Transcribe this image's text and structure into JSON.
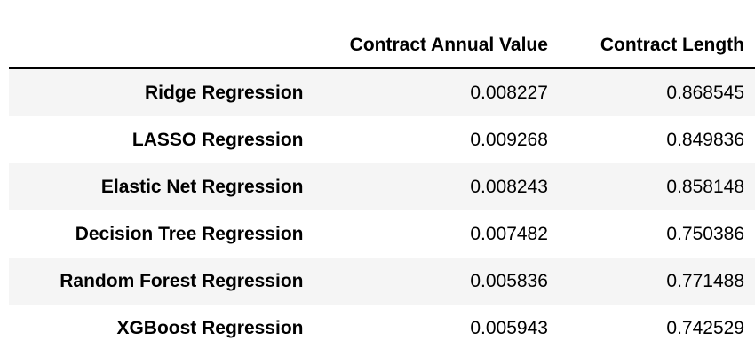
{
  "table": {
    "index_header": "",
    "columns": [
      "Contract Annual Value",
      "Contract Length"
    ],
    "rows": [
      {
        "label": "Ridge Regression",
        "values": [
          "0.008227",
          "0.868545"
        ]
      },
      {
        "label": "LASSO Regression",
        "values": [
          "0.009268",
          "0.849836"
        ]
      },
      {
        "label": "Elastic Net Regression",
        "values": [
          "0.008243",
          "0.858148"
        ]
      },
      {
        "label": "Decision Tree Regression",
        "values": [
          "0.007482",
          "0.750386"
        ]
      },
      {
        "label": "Random Forest Regression",
        "values": [
          "0.005836",
          "0.771488"
        ]
      },
      {
        "label": "XGBoost Regression",
        "values": [
          "0.005943",
          "0.742529"
        ]
      }
    ]
  }
}
